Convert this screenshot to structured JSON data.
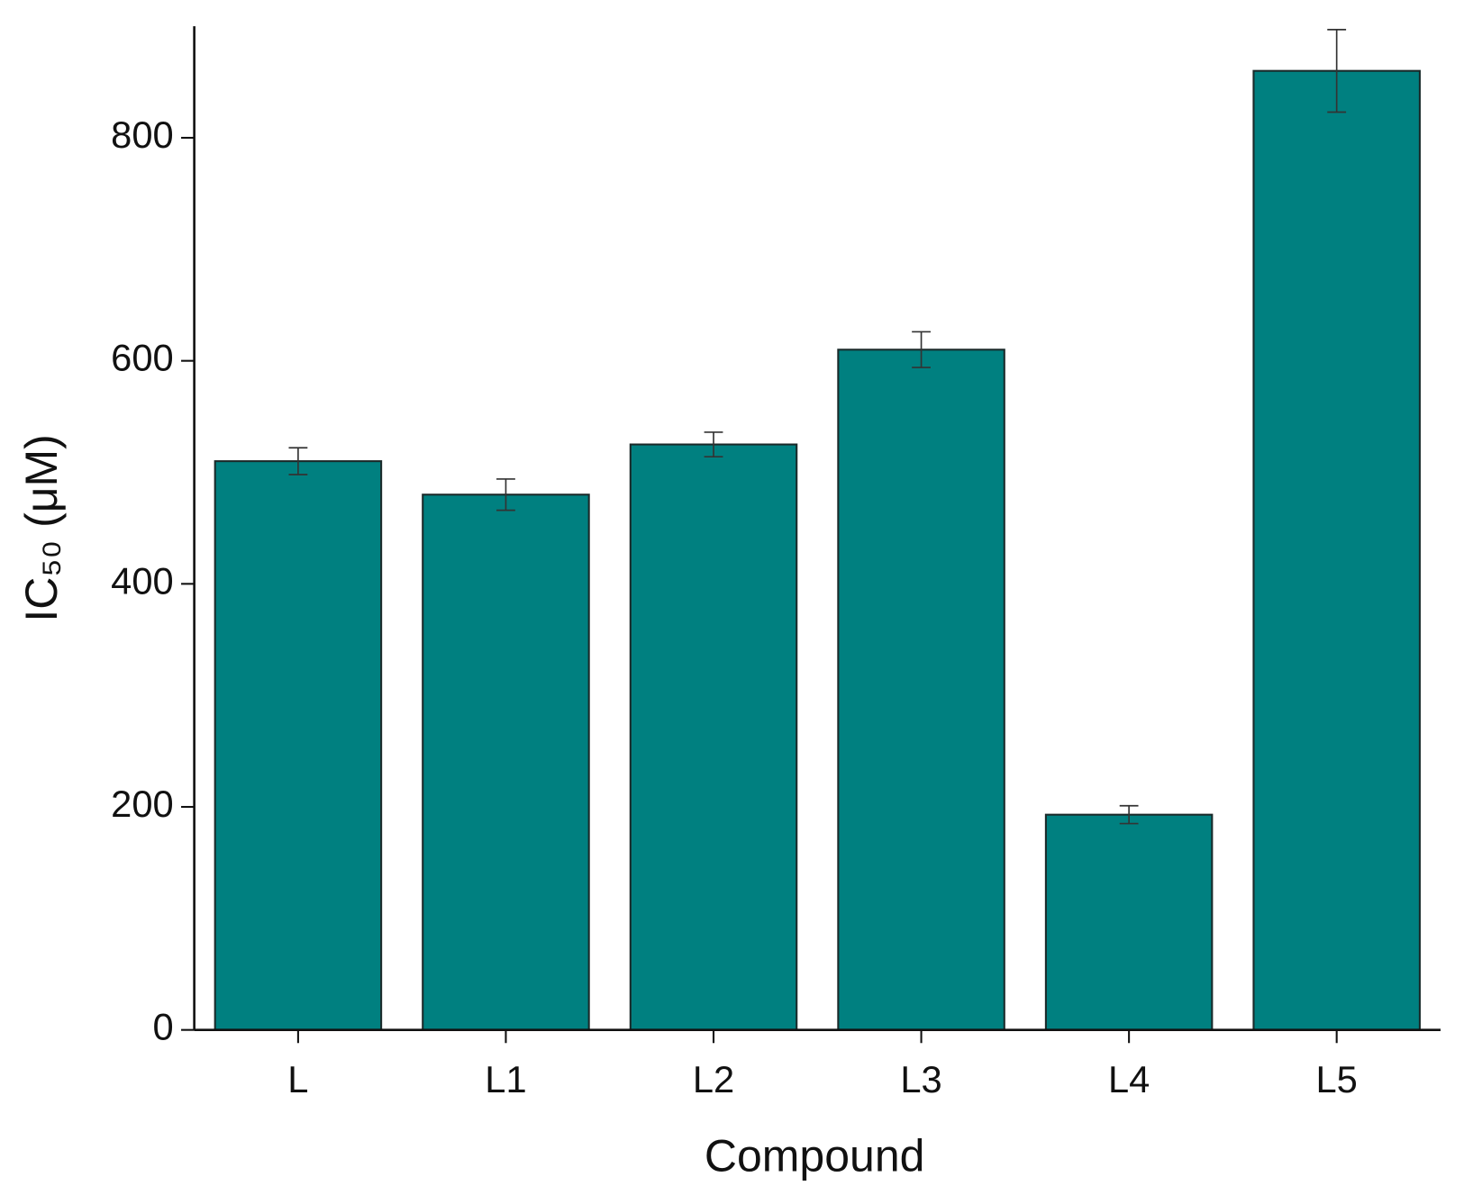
{
  "chart_data": {
    "type": "bar",
    "xlabel": "Compound",
    "ylabel": "IC₅₀ (μM)",
    "categories": [
      "L",
      "L1",
      "L2",
      "L3",
      "L4",
      "L5"
    ],
    "values": [
      510,
      480,
      525,
      610,
      193,
      860
    ],
    "errors": [
      12,
      14,
      11,
      16,
      8,
      37
    ],
    "color": "#008080",
    "ylim": [
      0,
      900
    ],
    "yticks": [
      0,
      200,
      400,
      600,
      800
    ],
    "grid": false
  }
}
